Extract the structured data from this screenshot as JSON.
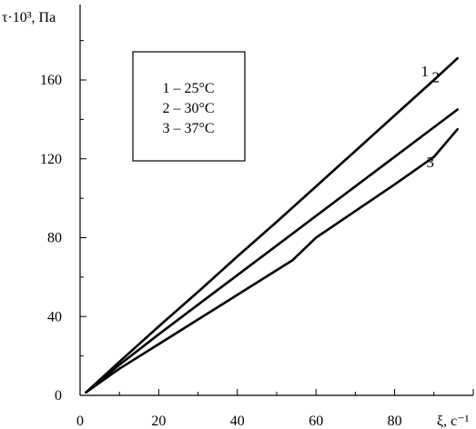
{
  "chart_data": {
    "type": "line",
    "ylabel": "τ·10³, Па",
    "xlabel": "ξ, с⁻¹",
    "xlim": [
      0,
      100
    ],
    "ylim": [
      0,
      180
    ],
    "x_ticks": [
      0,
      20,
      40,
      60,
      80
    ],
    "y_ticks": [
      0,
      40,
      80,
      120,
      160
    ],
    "grid": false,
    "legend_position": "upper-left",
    "legend_entries": [
      "1 – 25°C",
      "2 – 30°C",
      "3 – 37°C"
    ],
    "series": [
      {
        "name": "1",
        "x": [
          1.5,
          10,
          20,
          30,
          40,
          50,
          60,
          70,
          80,
          90,
          96
        ],
        "y": [
          1.5,
          17,
          35,
          52.5,
          70.5,
          88,
          106,
          124,
          142,
          160,
          171
        ]
      },
      {
        "name": "2",
        "x": [
          1.5,
          10,
          20,
          30,
          40,
          50,
          60,
          70,
          80,
          90,
          96
        ],
        "y": [
          1.5,
          15.5,
          31,
          46,
          61,
          76,
          91,
          106,
          121,
          136,
          145
        ]
      },
      {
        "name": "3",
        "x": [
          1.5,
          10,
          20,
          30,
          40,
          54,
          60,
          70,
          80,
          90,
          96
        ],
        "y": [
          1.5,
          13.5,
          26,
          38.5,
          51,
          68.5,
          80,
          93.5,
          107,
          121,
          135
        ]
      }
    ]
  }
}
